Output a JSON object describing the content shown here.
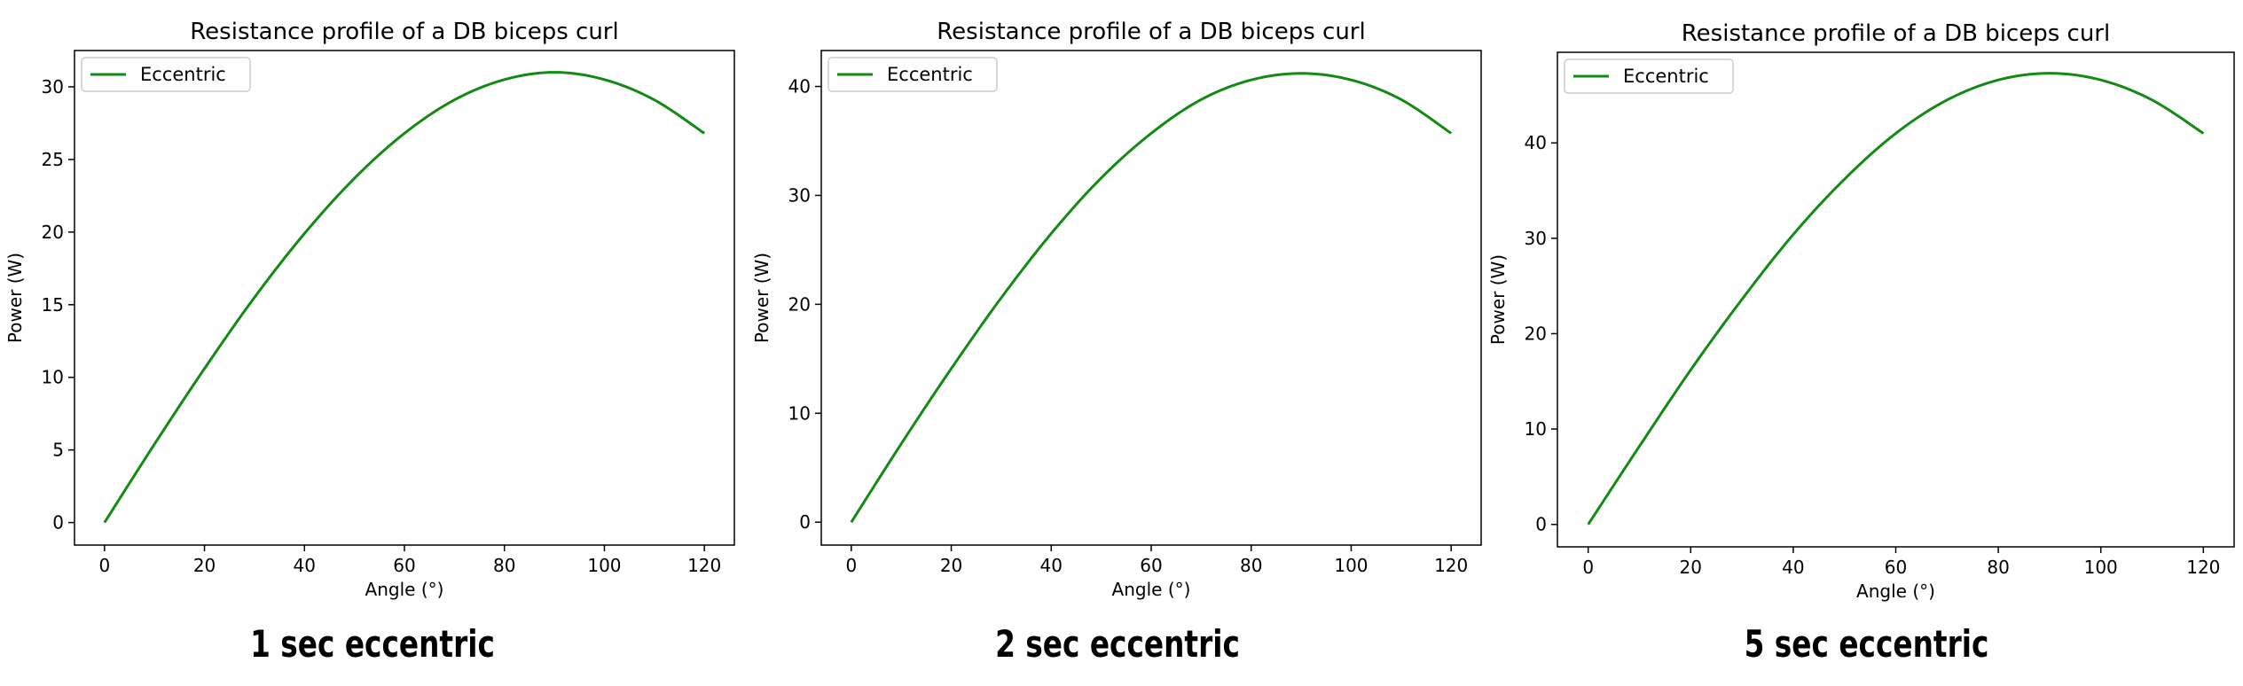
{
  "chart_data": [
    {
      "type": "line",
      "title": "Resistance profile of a DB biceps curl",
      "xlabel": "Angle (°)",
      "ylabel": "Power (W)",
      "xlim": [
        -6,
        126
      ],
      "ylim": [
        -1.55,
        32.5
      ],
      "xticks": [
        0,
        20,
        40,
        60,
        80,
        100,
        120
      ],
      "yticks": [
        0,
        5,
        10,
        15,
        20,
        25,
        30
      ],
      "legend_placement": "upper-left",
      "grid": false,
      "caption": "1 sec eccentric",
      "series": [
        {
          "name": "Eccentric",
          "color": "#138a13",
          "x": [
            0,
            10,
            20,
            30,
            40,
            50,
            60,
            70,
            80,
            90,
            100,
            110,
            120
          ],
          "y": [
            0,
            5.4,
            10.6,
            15.5,
            19.9,
            23.7,
            26.8,
            29.1,
            30.5,
            31.0,
            30.5,
            29.1,
            26.8
          ]
        }
      ]
    },
    {
      "type": "line",
      "title": "Resistance profile of a DB biceps curl",
      "xlabel": "Angle (°)",
      "ylabel": "Power (W)",
      "xlim": [
        -6,
        126
      ],
      "ylim": [
        -2.1,
        43.3
      ],
      "xticks": [
        0,
        20,
        40,
        60,
        80,
        100,
        120
      ],
      "yticks": [
        0,
        10,
        20,
        30,
        40
      ],
      "legend_placement": "upper-left",
      "grid": false,
      "caption": "2 sec eccentric",
      "series": [
        {
          "name": "Eccentric",
          "color": "#138a13",
          "x": [
            0,
            10,
            20,
            30,
            40,
            50,
            60,
            70,
            80,
            90,
            100,
            110,
            120
          ],
          "y": [
            0,
            7.2,
            14.1,
            20.6,
            26.5,
            31.6,
            35.7,
            38.8,
            40.6,
            41.2,
            40.6,
            38.8,
            35.7
          ]
        }
      ]
    },
    {
      "type": "line",
      "title": "Resistance profile of a DB biceps curl",
      "xlabel": "Angle (°)",
      "ylabel": "Power (W)",
      "xlim": [
        -6,
        126
      ],
      "ylim": [
        -2.35,
        49.5
      ],
      "xticks": [
        0,
        20,
        40,
        60,
        80,
        100,
        120
      ],
      "yticks": [
        0,
        10,
        20,
        30,
        40
      ],
      "legend_placement": "upper-left",
      "grid": false,
      "caption": "5 sec eccentric",
      "series": [
        {
          "name": "Eccentric",
          "color": "#138a13",
          "x": [
            0,
            10,
            20,
            30,
            40,
            50,
            60,
            70,
            80,
            90,
            100,
            110,
            120
          ],
          "y": [
            0,
            8.2,
            16.2,
            23.6,
            30.4,
            36.2,
            41.0,
            44.5,
            46.6,
            47.3,
            46.6,
            44.5,
            41.0
          ]
        }
      ]
    }
  ]
}
